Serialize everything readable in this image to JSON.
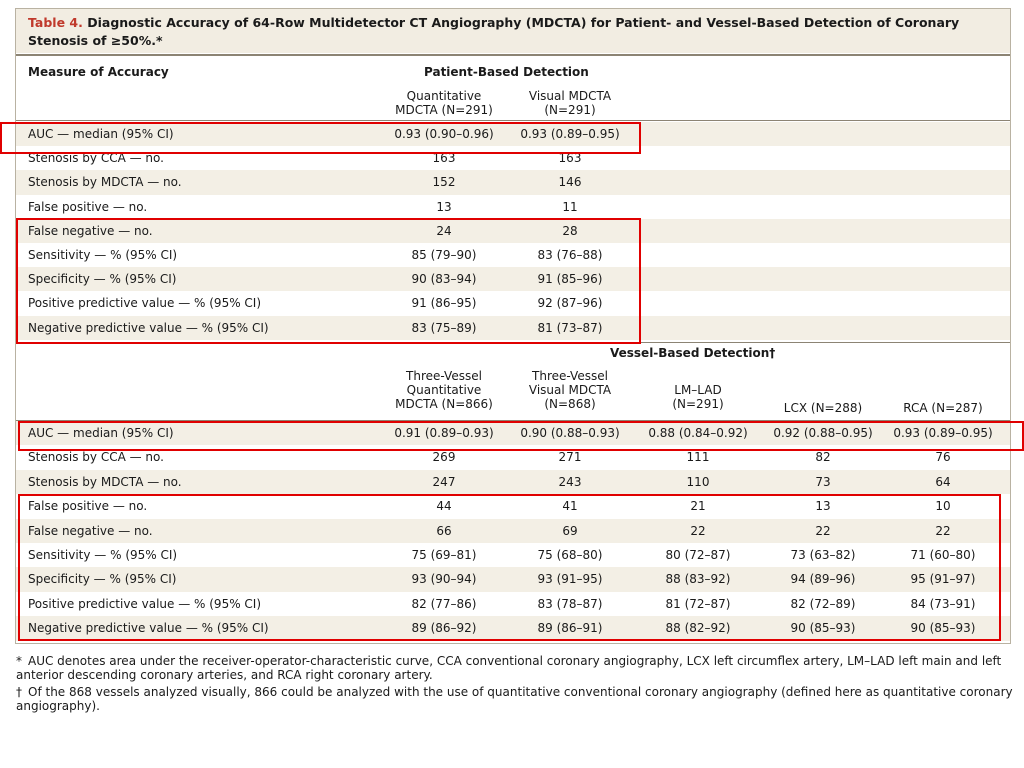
{
  "table": {
    "label": "Table 4.",
    "title": "Diagnostic Accuracy of 64-Row Multidetector CT Angiography (MDCTA) for Patient- and Vessel-Based Detection of Coronary Stenosis of ≥50%.*",
    "measure_header": "Measure of Accuracy",
    "patient": {
      "section": "Patient-Based Detection",
      "columns": [
        "Quantitative\nMDCTA (N=291)",
        "Visual MDCTA\n(N=291)"
      ],
      "rows": [
        {
          "label": "AUC — median (95% CI)",
          "values": [
            "0.93 (0.90–0.96)",
            "0.93 (0.89–0.95)"
          ]
        },
        {
          "label": "Stenosis by CCA — no.",
          "values": [
            "163",
            "163"
          ]
        },
        {
          "label": "Stenosis by MDCTA — no.",
          "values": [
            "152",
            "146"
          ]
        },
        {
          "label": "False positive — no.",
          "values": [
            "13",
            "11"
          ]
        },
        {
          "label": "False negative — no.",
          "values": [
            "24",
            "28"
          ]
        },
        {
          "label": "Sensitivity — % (95% CI)",
          "values": [
            "85 (79–90)",
            "83 (76–88)"
          ]
        },
        {
          "label": "Specificity — % (95% CI)",
          "values": [
            "90 (83–94)",
            "91 (85–96)"
          ]
        },
        {
          "label": "Positive predictive value — % (95% CI)",
          "values": [
            "91 (86–95)",
            "92 (87–96)"
          ]
        },
        {
          "label": "Negative predictive value — % (95% CI)",
          "values": [
            "83 (75–89)",
            "81 (73–87)"
          ]
        }
      ]
    },
    "vessel": {
      "section": "Vessel-Based Detection†",
      "columns": [
        "Three-Vessel\nQuantitative\nMDCTA (N=866)",
        "Three-Vessel\nVisual MDCTA\n(N=868)",
        "LM–LAD\n(N=291)",
        "LCX (N=288)",
        "RCA (N=287)"
      ],
      "rows": [
        {
          "label": "AUC — median (95% CI)",
          "values": [
            "0.91 (0.89–0.93)",
            "0.90 (0.88–0.93)",
            "0.88 (0.84–0.92)",
            "0.92 (0.88–0.95)",
            "0.93 (0.89–0.95)"
          ]
        },
        {
          "label": "Stenosis by CCA — no.",
          "values": [
            "269",
            "271",
            "111",
            "82",
            "76"
          ]
        },
        {
          "label": "Stenosis by MDCTA — no.",
          "values": [
            "247",
            "243",
            "110",
            "73",
            "64"
          ]
        },
        {
          "label": "False positive — no.",
          "values": [
            "44",
            "41",
            "21",
            "13",
            "10"
          ]
        },
        {
          "label": "False negative — no.",
          "values": [
            "66",
            "69",
            "22",
            "22",
            "22"
          ]
        },
        {
          "label": "Sensitivity — % (95% CI)",
          "values": [
            "75 (69–81)",
            "75 (68–80)",
            "80 (72–87)",
            "73 (63–82)",
            "71 (60–80)"
          ]
        },
        {
          "label": "Specificity — % (95% CI)",
          "values": [
            "93 (90–94)",
            "93 (91–95)",
            "88 (83–92)",
            "94 (89–96)",
            "95 (91–97)"
          ]
        },
        {
          "label": "Positive predictive value — % (95% CI)",
          "values": [
            "82 (77–86)",
            "83 (78–87)",
            "81 (72–87)",
            "82 (72–89)",
            "84 (73–91)"
          ]
        },
        {
          "label": "Negative predictive value — % (95% CI)",
          "values": [
            "89 (86–92)",
            "89 (86–91)",
            "88 (82–92)",
            "90 (85–93)",
            "90 (85–93)"
          ]
        }
      ]
    },
    "footnotes": [
      {
        "mark": "*",
        "text": "AUC denotes area under the receiver-operator-characteristic curve, CCA conventional coronary angiography, LCX left circumflex artery, LM–LAD left main and left anterior descending coronary arteries, and RCA right coronary artery."
      },
      {
        "mark": "†",
        "text": "Of the 868 vessels analyzed visually, 866 could be analyzed with the use of quantitative conventional coronary angiography (defined here as quantitative coronary angiography)."
      }
    ]
  },
  "colors": {
    "title_label": "#c0392b",
    "highlight_box": "#e00000",
    "band": "#f3efe5"
  }
}
